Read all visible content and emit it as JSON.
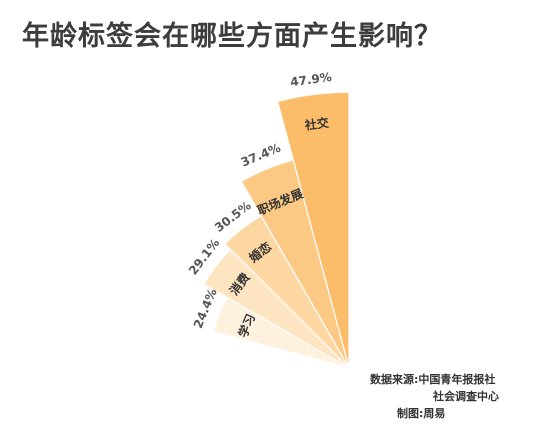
{
  "chart_data": {
    "type": "pie",
    "title": "年龄标签会在哪些方面产生影响？",
    "categories": [
      "社交",
      "职场发展",
      "婚恋",
      "消费",
      "学习"
    ],
    "values": [
      47.9,
      37.4,
      30.5,
      29.1,
      24.4
    ],
    "value_labels": [
      "47.9%",
      "37.4%",
      "30.5%",
      "29.1%",
      "24.4%"
    ],
    "colors": [
      "#fbbd6a",
      "#fcc985",
      "#fdd7a2",
      "#fee5c1",
      "#fef1dd"
    ],
    "variant": "radial fan (nightingale-style), radius proportional to value"
  },
  "source": {
    "line1": "数据来源:中国青年报报社",
    "line2": "社会调查中心",
    "line3": "制图:周易"
  }
}
